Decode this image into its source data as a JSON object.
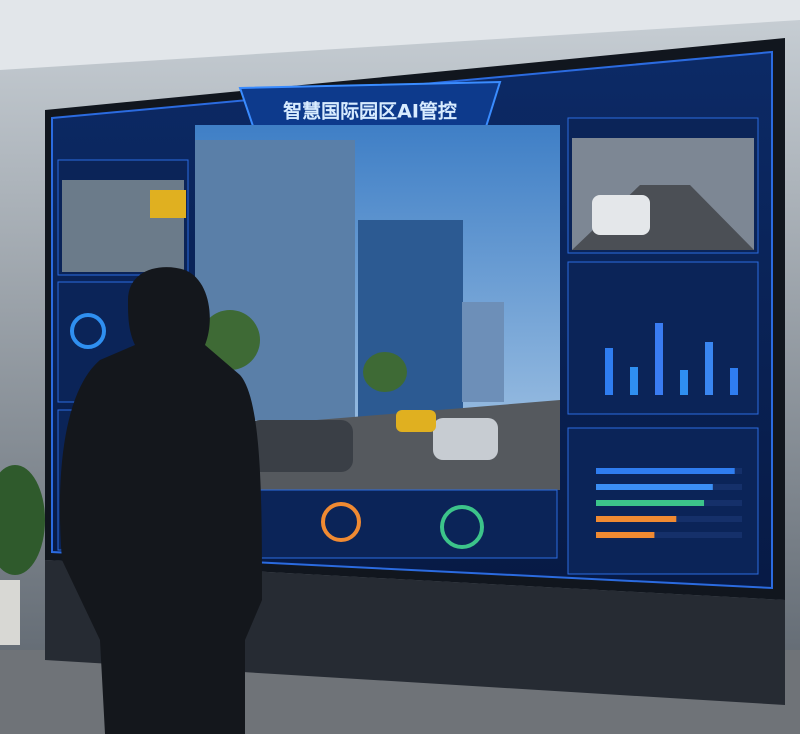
{
  "screen": {
    "title": "智慧国际园区AI管控",
    "column_chart": {
      "values": [
        47,
        28,
        72,
        25,
        53,
        27
      ],
      "colors": [
        "#2f7df0",
        "#2f8ff0",
        "#3a7cf2",
        "#2f8ff0",
        "#3a86f0",
        "#2f7df0"
      ],
      "ylim": [
        0,
        80
      ]
    },
    "bar_chart": {
      "values": [
        95,
        80,
        74,
        55,
        40
      ],
      "colors": [
        "#2f7df0",
        "#3b8ff5",
        "#3cc48a",
        "#f08a32",
        "#f08a32"
      ],
      "xlim": [
        0,
        100
      ]
    }
  }
}
